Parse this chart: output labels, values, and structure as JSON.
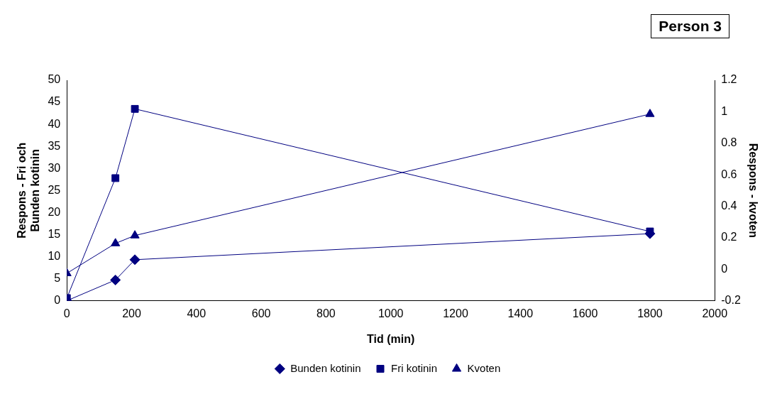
{
  "chart_data": {
    "type": "line",
    "title": "Person 3",
    "xlabel": "Tid (min)",
    "ylabel": "Respons - Fri och Bunden kotinin",
    "y2label": "Respons - kvoten",
    "x": [
      0,
      150,
      210,
      1800
    ],
    "series": [
      {
        "name": "Bunden kotinin",
        "color": "#000080",
        "marker": "diamond",
        "values": [
          0,
          4.7,
          9.3,
          15.2
        ]
      },
      {
        "name": "Fri kotinin",
        "color": "#000080",
        "marker": "square",
        "values": [
          0.6,
          27.8,
          43.5,
          15.7
        ]
      },
      {
        "name": "Kvoten",
        "color": "#000080",
        "marker": "triangle",
        "axis": "y2",
        "values": [
          -0.026,
          0.164,
          0.214,
          0.985
        ]
      }
    ],
    "xlim": [
      0,
      2000
    ],
    "xticks": [
      0,
      200,
      400,
      600,
      800,
      1000,
      1200,
      1400,
      1600,
      1800,
      2000
    ],
    "ylim": [
      0,
      50
    ],
    "yticks": [
      0,
      5,
      10,
      15,
      20,
      25,
      30,
      35,
      40,
      45,
      50
    ],
    "y2lim": [
      -0.2,
      1.2
    ],
    "y2ticks": [
      -0.2,
      0,
      0.2,
      0.4,
      0.6,
      0.8,
      1,
      1.2
    ],
    "grid": false,
    "legend": "bottom",
    "line_style": "solid"
  }
}
